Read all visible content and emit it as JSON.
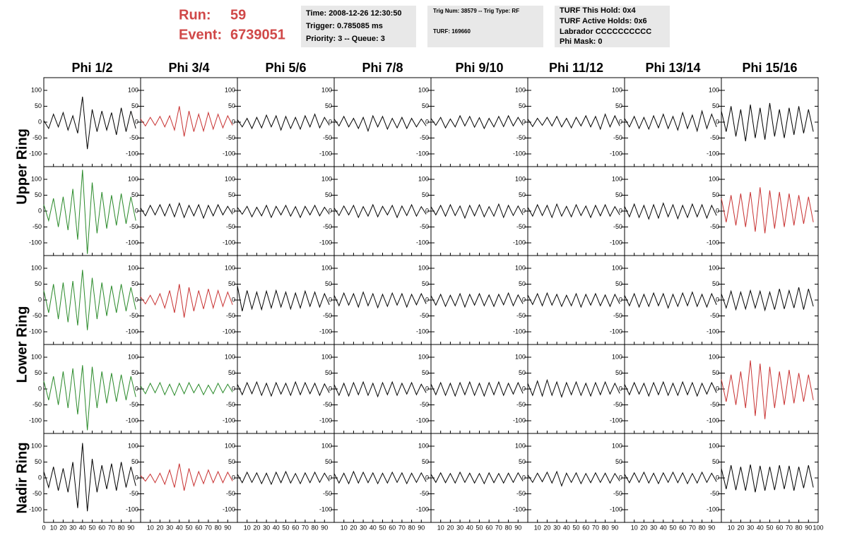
{
  "header": {
    "run_label": "Run:",
    "run": "59",
    "event_label": "Event:",
    "event": "6739051",
    "info1": [
      "Time: 2008-12-26 12:30:50",
      "Trigger: 0.785085 ms",
      "Priority: 3 -- Queue: 3"
    ],
    "info2": [
      "Trig Num: 38579 -- Trig Type: RF",
      "TURF: 169660"
    ],
    "info3": [
      "TURF This Hold: 0x4",
      "TURF Active Holds: 0x6",
      "Labrador CCCCCCCCCC",
      "Phi Mask: 0"
    ]
  },
  "chart_data": {
    "type": "waveform-grid",
    "columns": [
      "Phi 1/2",
      "Phi 3/4",
      "Phi 5/6",
      "Phi 7/8",
      "Phi 9/10",
      "Phi 11/12",
      "Phi 13/14",
      "Phi 15/16"
    ],
    "rings": [
      "Upper Ring",
      "Lower Ring",
      "Nadir Ring"
    ],
    "x": [
      0,
      5,
      10,
      15,
      20,
      25,
      30,
      35,
      40,
      45,
      50,
      55,
      60,
      65,
      70,
      75,
      80,
      85,
      90,
      95
    ],
    "xlim": [
      0,
      100
    ],
    "xticks": [
      0,
      10,
      20,
      30,
      40,
      50,
      60,
      70,
      80,
      90,
      100
    ],
    "ylim": [
      -140,
      140
    ],
    "yticks": [
      -100,
      -50,
      0,
      50,
      100
    ],
    "panels": [
      [
        {
          "color": "#000000",
          "values": [
            5,
            -20,
            25,
            -15,
            30,
            -25,
            20,
            -35,
            80,
            -85,
            40,
            -30,
            35,
            -25,
            30,
            -40,
            45,
            -30,
            35,
            -20
          ]
        },
        {
          "color": "#c83232",
          "values": [
            10,
            -12,
            15,
            -10,
            18,
            -15,
            20,
            -25,
            50,
            -45,
            35,
            -30,
            25,
            -28,
            30,
            -22,
            25,
            -18,
            20,
            -10
          ]
        },
        {
          "color": "#000000",
          "values": [
            8,
            -15,
            12,
            -20,
            15,
            -18,
            22,
            -15,
            20,
            -25,
            18,
            -20,
            15,
            -22,
            20,
            -15,
            25,
            -18,
            15,
            -10
          ]
        },
        {
          "color": "#000000",
          "values": [
            10,
            -12,
            18,
            -15,
            12,
            -20,
            15,
            -28,
            20,
            -15,
            18,
            -22,
            12,
            -18,
            15,
            -20,
            12,
            -15,
            10,
            -12
          ]
        },
        {
          "color": "#000000",
          "values": [
            12,
            -10,
            15,
            -18,
            10,
            -15,
            20,
            -12,
            18,
            -16,
            14,
            -20,
            12,
            -15,
            18,
            -14,
            20,
            -12,
            15,
            -10
          ]
        },
        {
          "color": "#000000",
          "values": [
            10,
            -14,
            12,
            -10,
            15,
            -12,
            18,
            -15,
            12,
            -18,
            15,
            -12,
            20,
            -15,
            18,
            -22,
            25,
            -15,
            20,
            -12
          ]
        },
        {
          "color": "#000000",
          "values": [
            12,
            -15,
            18,
            -20,
            15,
            -22,
            20,
            -18,
            25,
            -20,
            18,
            -25,
            30,
            -20,
            22,
            -28,
            35,
            -20,
            25,
            -15
          ]
        },
        {
          "color": "#000000",
          "values": [
            35,
            -30,
            50,
            -45,
            40,
            -60,
            55,
            -50,
            45,
            -55,
            60,
            -45,
            40,
            -50,
            45,
            -40,
            50,
            -35,
            40,
            -30
          ]
        }
      ],
      [
        {
          "color": "#2a8a2a",
          "values": [
            20,
            -30,
            40,
            -50,
            45,
            -60,
            70,
            -90,
            130,
            -135,
            90,
            -70,
            60,
            -55,
            50,
            -45,
            55,
            -40,
            45,
            -30
          ]
        },
        {
          "color": "#000000",
          "values": [
            10,
            -15,
            18,
            -12,
            20,
            -15,
            22,
            -18,
            25,
            -20,
            18,
            -15,
            20,
            -22,
            18,
            -15,
            20,
            -12,
            15,
            -10
          ]
        },
        {
          "color": "#000000",
          "values": [
            12,
            -10,
            15,
            -18,
            12,
            -15,
            18,
            -20,
            15,
            -12,
            18,
            -16,
            14,
            -20,
            15,
            -12,
            18,
            -15,
            12,
            -10
          ]
        },
        {
          "color": "#000000",
          "values": [
            10,
            -14,
            16,
            -12,
            18,
            -20,
            14,
            -16,
            20,
            -18,
            15,
            -12,
            18,
            -20,
            16,
            -14,
            20,
            -16,
            14,
            -10
          ]
        },
        {
          "color": "#000000",
          "values": [
            14,
            -12,
            18,
            -16,
            20,
            -14,
            16,
            -22,
            18,
            -15,
            20,
            -18,
            14,
            -16,
            22,
            -20,
            18,
            -14,
            16,
            -12
          ]
        },
        {
          "color": "#000000",
          "values": [
            12,
            -16,
            20,
            -14,
            18,
            -20,
            22,
            -16,
            15,
            -18,
            20,
            -14,
            16,
            -20,
            18,
            -15,
            20,
            -16,
            14,
            -12
          ]
        },
        {
          "color": "#000000",
          "values": [
            15,
            -18,
            22,
            -20,
            18,
            -25,
            20,
            -22,
            25,
            -18,
            20,
            -24,
            18,
            -20,
            22,
            -18,
            20,
            -22,
            18,
            -14
          ]
        },
        {
          "color": "#c83232",
          "values": [
            40,
            -35,
            50,
            -45,
            55,
            -50,
            60,
            -65,
            75,
            -70,
            65,
            -55,
            60,
            -50,
            55,
            -45,
            50,
            -40,
            45,
            -35
          ]
        }
      ],
      [
        {
          "color": "#2a8a2a",
          "values": [
            30,
            -40,
            50,
            -60,
            55,
            -70,
            60,
            -80,
            95,
            -95,
            70,
            -60,
            55,
            -50,
            45,
            -40,
            50,
            -35,
            40,
            -30
          ]
        },
        {
          "color": "#c83232",
          "values": [
            10,
            -12,
            15,
            -15,
            20,
            -25,
            30,
            -40,
            50,
            -55,
            40,
            -35,
            30,
            -28,
            35,
            -25,
            30,
            -20,
            25,
            -15
          ]
        },
        {
          "color": "#000000",
          "values": [
            45,
            -35,
            30,
            -28,
            25,
            -30,
            28,
            -25,
            30,
            -22,
            25,
            -28,
            22,
            -25,
            28,
            -20,
            25,
            -22,
            20,
            -15
          ]
        },
        {
          "color": "#000000",
          "values": [
            15,
            -18,
            22,
            -16,
            20,
            -22,
            25,
            -18,
            20,
            -24,
            18,
            -20,
            22,
            -16,
            20,
            -22,
            18,
            -15,
            20,
            -12
          ]
        },
        {
          "color": "#000000",
          "values": [
            14,
            -16,
            18,
            -20,
            15,
            -18,
            20,
            -22,
            18,
            -16,
            20,
            -18,
            16,
            -20,
            18,
            -15,
            22,
            -18,
            16,
            -12
          ]
        },
        {
          "color": "#000000",
          "values": [
            16,
            -14,
            20,
            -18,
            22,
            -16,
            18,
            -20,
            15,
            -18,
            20,
            -22,
            18,
            -16,
            20,
            -18,
            16,
            -20,
            18,
            -12
          ]
        },
        {
          "color": "#000000",
          "values": [
            15,
            -18,
            20,
            -22,
            18,
            -20,
            22,
            -18,
            20,
            -25,
            18,
            -20,
            22,
            -18,
            25,
            -20,
            18,
            -22,
            20,
            -15
          ]
        },
        {
          "color": "#000000",
          "values": [
            20,
            -25,
            28,
            -30,
            25,
            -28,
            30,
            -25,
            28,
            -32,
            25,
            -30,
            35,
            -28,
            30,
            -25,
            40,
            -30,
            35,
            -20
          ]
        }
      ],
      [
        {
          "color": "#2a8a2a",
          "values": [
            25,
            -35,
            40,
            -50,
            55,
            -60,
            65,
            -80,
            75,
            -130,
            70,
            -60,
            55,
            -45,
            50,
            -40,
            45,
            -35,
            40,
            -25
          ]
        },
        {
          "color": "#2a8a2a",
          "values": [
            10,
            -15,
            18,
            -12,
            20,
            -18,
            15,
            -20,
            18,
            -15,
            20,
            -12,
            15,
            -18,
            12,
            -15,
            18,
            -12,
            15,
            -10
          ]
        },
        {
          "color": "#000000",
          "values": [
            15,
            -18,
            20,
            -15,
            22,
            -20,
            18,
            -22,
            20,
            -16,
            18,
            -20,
            22,
            -18,
            20,
            -15,
            18,
            -20,
            16,
            -12
          ]
        },
        {
          "color": "#000000",
          "values": [
            14,
            -20,
            18,
            -22,
            20,
            -18,
            22,
            -20,
            18,
            -24,
            20,
            -18,
            22,
            -20,
            18,
            -16,
            20,
            -18,
            15,
            -12
          ]
        },
        {
          "color": "#000000",
          "values": [
            16,
            -18,
            20,
            -20,
            18,
            -22,
            20,
            -18,
            22,
            -20,
            18,
            -22,
            20,
            -18,
            22,
            -20,
            18,
            -16,
            20,
            -14
          ]
        },
        {
          "color": "#000000",
          "values": [
            18,
            -20,
            25,
            -22,
            28,
            -20,
            22,
            -25,
            20,
            -18,
            22,
            -20,
            18,
            -22,
            20,
            -18,
            22,
            -16,
            18,
            -14
          ]
        },
        {
          "color": "#000000",
          "values": [
            15,
            -18,
            20,
            -16,
            18,
            -22,
            20,
            -18,
            22,
            -20,
            18,
            -20,
            22,
            -18,
            20,
            -22,
            18,
            -16,
            20,
            -12
          ]
        },
        {
          "color": "#c83232",
          "values": [
            30,
            -40,
            45,
            -50,
            55,
            -60,
            90,
            -85,
            80,
            -95,
            70,
            -60,
            55,
            -50,
            60,
            -45,
            50,
            -40,
            45,
            -35
          ]
        }
      ],
      [
        {
          "color": "#000000",
          "values": [
            20,
            -30,
            35,
            -40,
            30,
            -45,
            50,
            -95,
            110,
            -105,
            60,
            -45,
            40,
            -35,
            45,
            -40,
            50,
            -30,
            35,
            -25
          ]
        },
        {
          "color": "#c83232",
          "values": [
            8,
            -10,
            12,
            -15,
            15,
            -20,
            25,
            -30,
            45,
            -40,
            30,
            -25,
            20,
            -18,
            25,
            -15,
            20,
            -15,
            18,
            -10
          ]
        },
        {
          "color": "#000000",
          "values": [
            12,
            -15,
            18,
            -14,
            16,
            -18,
            15,
            -20,
            18,
            -15,
            20,
            -16,
            14,
            -18,
            16,
            -15,
            18,
            -14,
            15,
            -10
          ]
        },
        {
          "color": "#000000",
          "values": [
            14,
            -16,
            15,
            -18,
            20,
            -16,
            18,
            -15,
            16,
            -18,
            15,
            -16,
            18,
            -14,
            16,
            -18,
            15,
            -14,
            16,
            -12
          ]
        },
        {
          "color": "#000000",
          "values": [
            12,
            -14,
            16,
            -15,
            14,
            -16,
            18,
            -14,
            15,
            -16,
            14,
            -18,
            16,
            -15,
            14,
            -16,
            15,
            -14,
            16,
            -10
          ]
        },
        {
          "color": "#000000",
          "values": [
            10,
            -14,
            15,
            -12,
            18,
            -16,
            20,
            -25,
            15,
            -14,
            16,
            -18,
            14,
            -15,
            16,
            -14,
            15,
            -16,
            14,
            -10
          ]
        },
        {
          "color": "#000000",
          "values": [
            12,
            -15,
            16,
            -14,
            18,
            -16,
            15,
            -18,
            16,
            -14,
            18,
            -15,
            16,
            -18,
            14,
            -16,
            18,
            -14,
            15,
            -12
          ]
        },
        {
          "color": "#000000",
          "values": [
            30,
            -35,
            40,
            -38,
            35,
            -40,
            42,
            -45,
            38,
            -40,
            35,
            -38,
            40,
            -35,
            38,
            -40,
            35,
            -32,
            40,
            -30
          ]
        }
      ]
    ]
  }
}
